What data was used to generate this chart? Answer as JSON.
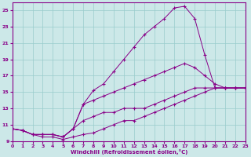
{
  "bg_color": "#cce8e8",
  "line_color": "#880088",
  "grid_color": "#99cccc",
  "xlabel": "Windchill (Refroidissement éolien,°C)",
  "ylim": [
    9,
    26
  ],
  "xlim": [
    0,
    23
  ],
  "yticks": [
    9,
    11,
    13,
    15,
    17,
    19,
    21,
    23,
    25
  ],
  "xticks": [
    0,
    1,
    2,
    3,
    4,
    5,
    6,
    7,
    8,
    9,
    10,
    11,
    12,
    13,
    14,
    15,
    16,
    17,
    18,
    19,
    20,
    21,
    22,
    23
  ],
  "lines": [
    {
      "x": [
        0,
        1,
        2,
        3,
        4,
        5,
        6,
        7,
        8,
        9,
        10,
        11,
        12,
        13,
        14,
        15,
        16,
        17,
        18,
        19,
        20,
        21,
        22,
        23
      ],
      "y": [
        10.5,
        10.3,
        9.8,
        9.8,
        9.8,
        9.5,
        10.5,
        13.5,
        15.2,
        16.0,
        17.5,
        19.0,
        20.5,
        22.0,
        23.0,
        24.0,
        25.3,
        25.5,
        24.0,
        19.5,
        15.5,
        15.5,
        15.5,
        15.5
      ]
    },
    {
      "x": [
        0,
        1,
        2,
        3,
        4,
        5,
        6,
        7,
        8,
        9,
        10,
        11,
        12,
        13,
        14,
        15,
        16,
        17,
        18,
        19,
        20,
        21,
        22,
        23
      ],
      "y": [
        10.5,
        10.3,
        9.8,
        9.8,
        9.8,
        9.5,
        10.5,
        13.5,
        14.0,
        14.5,
        15.0,
        15.5,
        16.0,
        16.5,
        17.0,
        17.5,
        18.0,
        18.5,
        18.0,
        17.0,
        16.0,
        15.5,
        15.5,
        15.5
      ]
    },
    {
      "x": [
        0,
        1,
        2,
        3,
        4,
        5,
        6,
        7,
        8,
        9,
        10,
        11,
        12,
        13,
        14,
        15,
        16,
        17,
        18,
        19,
        20,
        21,
        22,
        23
      ],
      "y": [
        10.5,
        10.3,
        9.8,
        9.8,
        9.8,
        9.5,
        10.5,
        11.5,
        12.0,
        12.5,
        12.5,
        13.0,
        13.0,
        13.0,
        13.5,
        14.0,
        14.5,
        15.0,
        15.5,
        15.5,
        15.5,
        15.5,
        15.5,
        15.5
      ]
    },
    {
      "x": [
        0,
        1,
        2,
        3,
        4,
        5,
        6,
        7,
        8,
        9,
        10,
        11,
        12,
        13,
        14,
        15,
        16,
        17,
        18,
        19,
        20,
        21,
        22,
        23
      ],
      "y": [
        10.5,
        10.3,
        9.8,
        9.5,
        9.5,
        9.2,
        9.5,
        9.8,
        10.0,
        10.5,
        11.0,
        11.5,
        11.5,
        12.0,
        12.5,
        13.0,
        13.5,
        14.0,
        14.5,
        15.0,
        15.5,
        15.5,
        15.5,
        15.5
      ]
    }
  ]
}
